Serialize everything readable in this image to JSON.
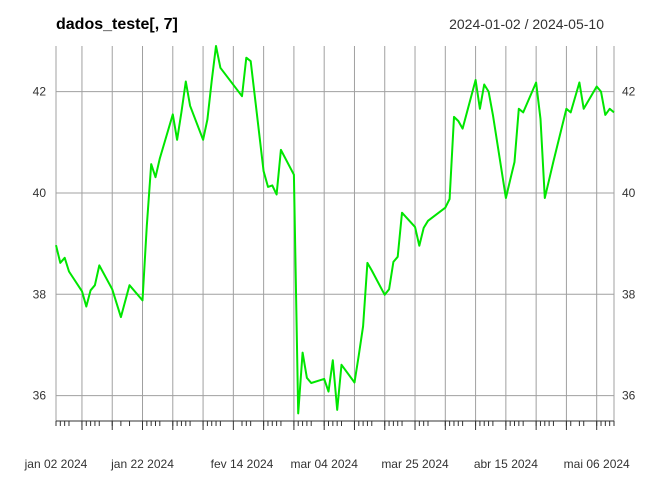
{
  "chart_data": {
    "type": "line",
    "title": "dados_teste[, 7]",
    "date_range_label": "2024-01-02 / 2024-05-10",
    "xlabel": "",
    "ylabel": "",
    "ylim": [
      35.5,
      42.9
    ],
    "y_ticks": [
      36,
      38,
      40,
      42
    ],
    "grid": true,
    "x_ticks": [
      {
        "date": "2024-01-02",
        "label": "jan 02 2024"
      },
      {
        "date": "2024-01-22",
        "label": "jan 22 2024"
      },
      {
        "date": "2024-02-14",
        "label": "fev 14 2024"
      },
      {
        "date": "2024-03-04",
        "label": "mar 04 2024"
      },
      {
        "date": "2024-03-25",
        "label": "mar 25 2024"
      },
      {
        "date": "2024-04-15",
        "label": "abr 15 2024"
      },
      {
        "date": "2024-05-06",
        "label": "mai 06 2024"
      }
    ],
    "series": [
      {
        "color": "#00e600",
        "x": [
          "2024-01-02",
          "2024-01-03",
          "2024-01-04",
          "2024-01-05",
          "2024-01-08",
          "2024-01-09",
          "2024-01-10",
          "2024-01-11",
          "2024-01-12",
          "2024-01-15",
          "2024-01-17",
          "2024-01-19",
          "2024-01-22",
          "2024-01-23",
          "2024-01-24",
          "2024-01-25",
          "2024-01-26",
          "2024-01-29",
          "2024-01-30",
          "2024-01-31",
          "2024-02-01",
          "2024-02-02",
          "2024-02-05",
          "2024-02-06",
          "2024-02-07",
          "2024-02-08",
          "2024-02-09",
          "2024-02-14",
          "2024-02-15",
          "2024-02-16",
          "2024-02-19",
          "2024-02-20",
          "2024-02-21",
          "2024-02-22",
          "2024-02-23",
          "2024-02-26",
          "2024-02-27",
          "2024-02-28",
          "2024-02-29",
          "2024-03-01",
          "2024-03-04",
          "2024-03-05",
          "2024-03-06",
          "2024-03-07",
          "2024-03-08",
          "2024-03-11",
          "2024-03-12",
          "2024-03-13",
          "2024-03-14",
          "2024-03-15",
          "2024-03-18",
          "2024-03-19",
          "2024-03-20",
          "2024-03-21",
          "2024-03-22",
          "2024-03-25",
          "2024-03-26",
          "2024-03-27",
          "2024-03-28",
          "2024-04-01",
          "2024-04-02",
          "2024-04-03",
          "2024-04-04",
          "2024-04-05",
          "2024-04-08",
          "2024-04-09",
          "2024-04-10",
          "2024-04-11",
          "2024-04-12",
          "2024-04-15",
          "2024-04-16",
          "2024-04-17",
          "2024-04-18",
          "2024-04-19",
          "2024-04-22",
          "2024-04-23",
          "2024-04-24",
          "2024-04-25",
          "2024-04-26",
          "2024-04-29",
          "2024-04-30",
          "2024-05-02",
          "2024-05-03",
          "2024-05-06",
          "2024-05-07",
          "2024-05-08",
          "2024-05-09",
          "2024-05-10"
        ],
        "values": [
          38.97,
          38.62,
          38.72,
          38.45,
          38.06,
          37.76,
          38.08,
          38.18,
          38.57,
          38.1,
          37.55,
          38.18,
          37.88,
          39.35,
          40.57,
          40.31,
          40.68,
          41.55,
          41.05,
          41.59,
          42.2,
          41.72,
          41.05,
          41.45,
          42.21,
          42.9,
          42.47,
          41.91,
          42.67,
          42.6,
          40.43,
          40.12,
          40.15,
          39.97,
          40.85,
          40.36,
          35.65,
          36.85,
          36.35,
          36.25,
          36.33,
          36.08,
          36.7,
          35.72,
          36.61,
          36.26,
          36.8,
          37.37,
          38.62,
          38.47,
          37.99,
          38.1,
          38.64,
          38.74,
          39.61,
          39.33,
          38.96,
          39.31,
          39.45,
          39.71,
          39.88,
          41.5,
          41.42,
          41.27,
          42.23,
          41.66,
          42.14,
          42.0,
          41.54,
          39.9,
          40.26,
          40.61,
          41.66,
          41.59,
          42.18,
          41.46,
          39.9,
          40.26,
          40.62,
          41.66,
          41.59,
          42.18,
          41.66,
          42.1,
          42.0,
          41.54,
          41.66,
          41.59
        ]
      }
    ]
  }
}
